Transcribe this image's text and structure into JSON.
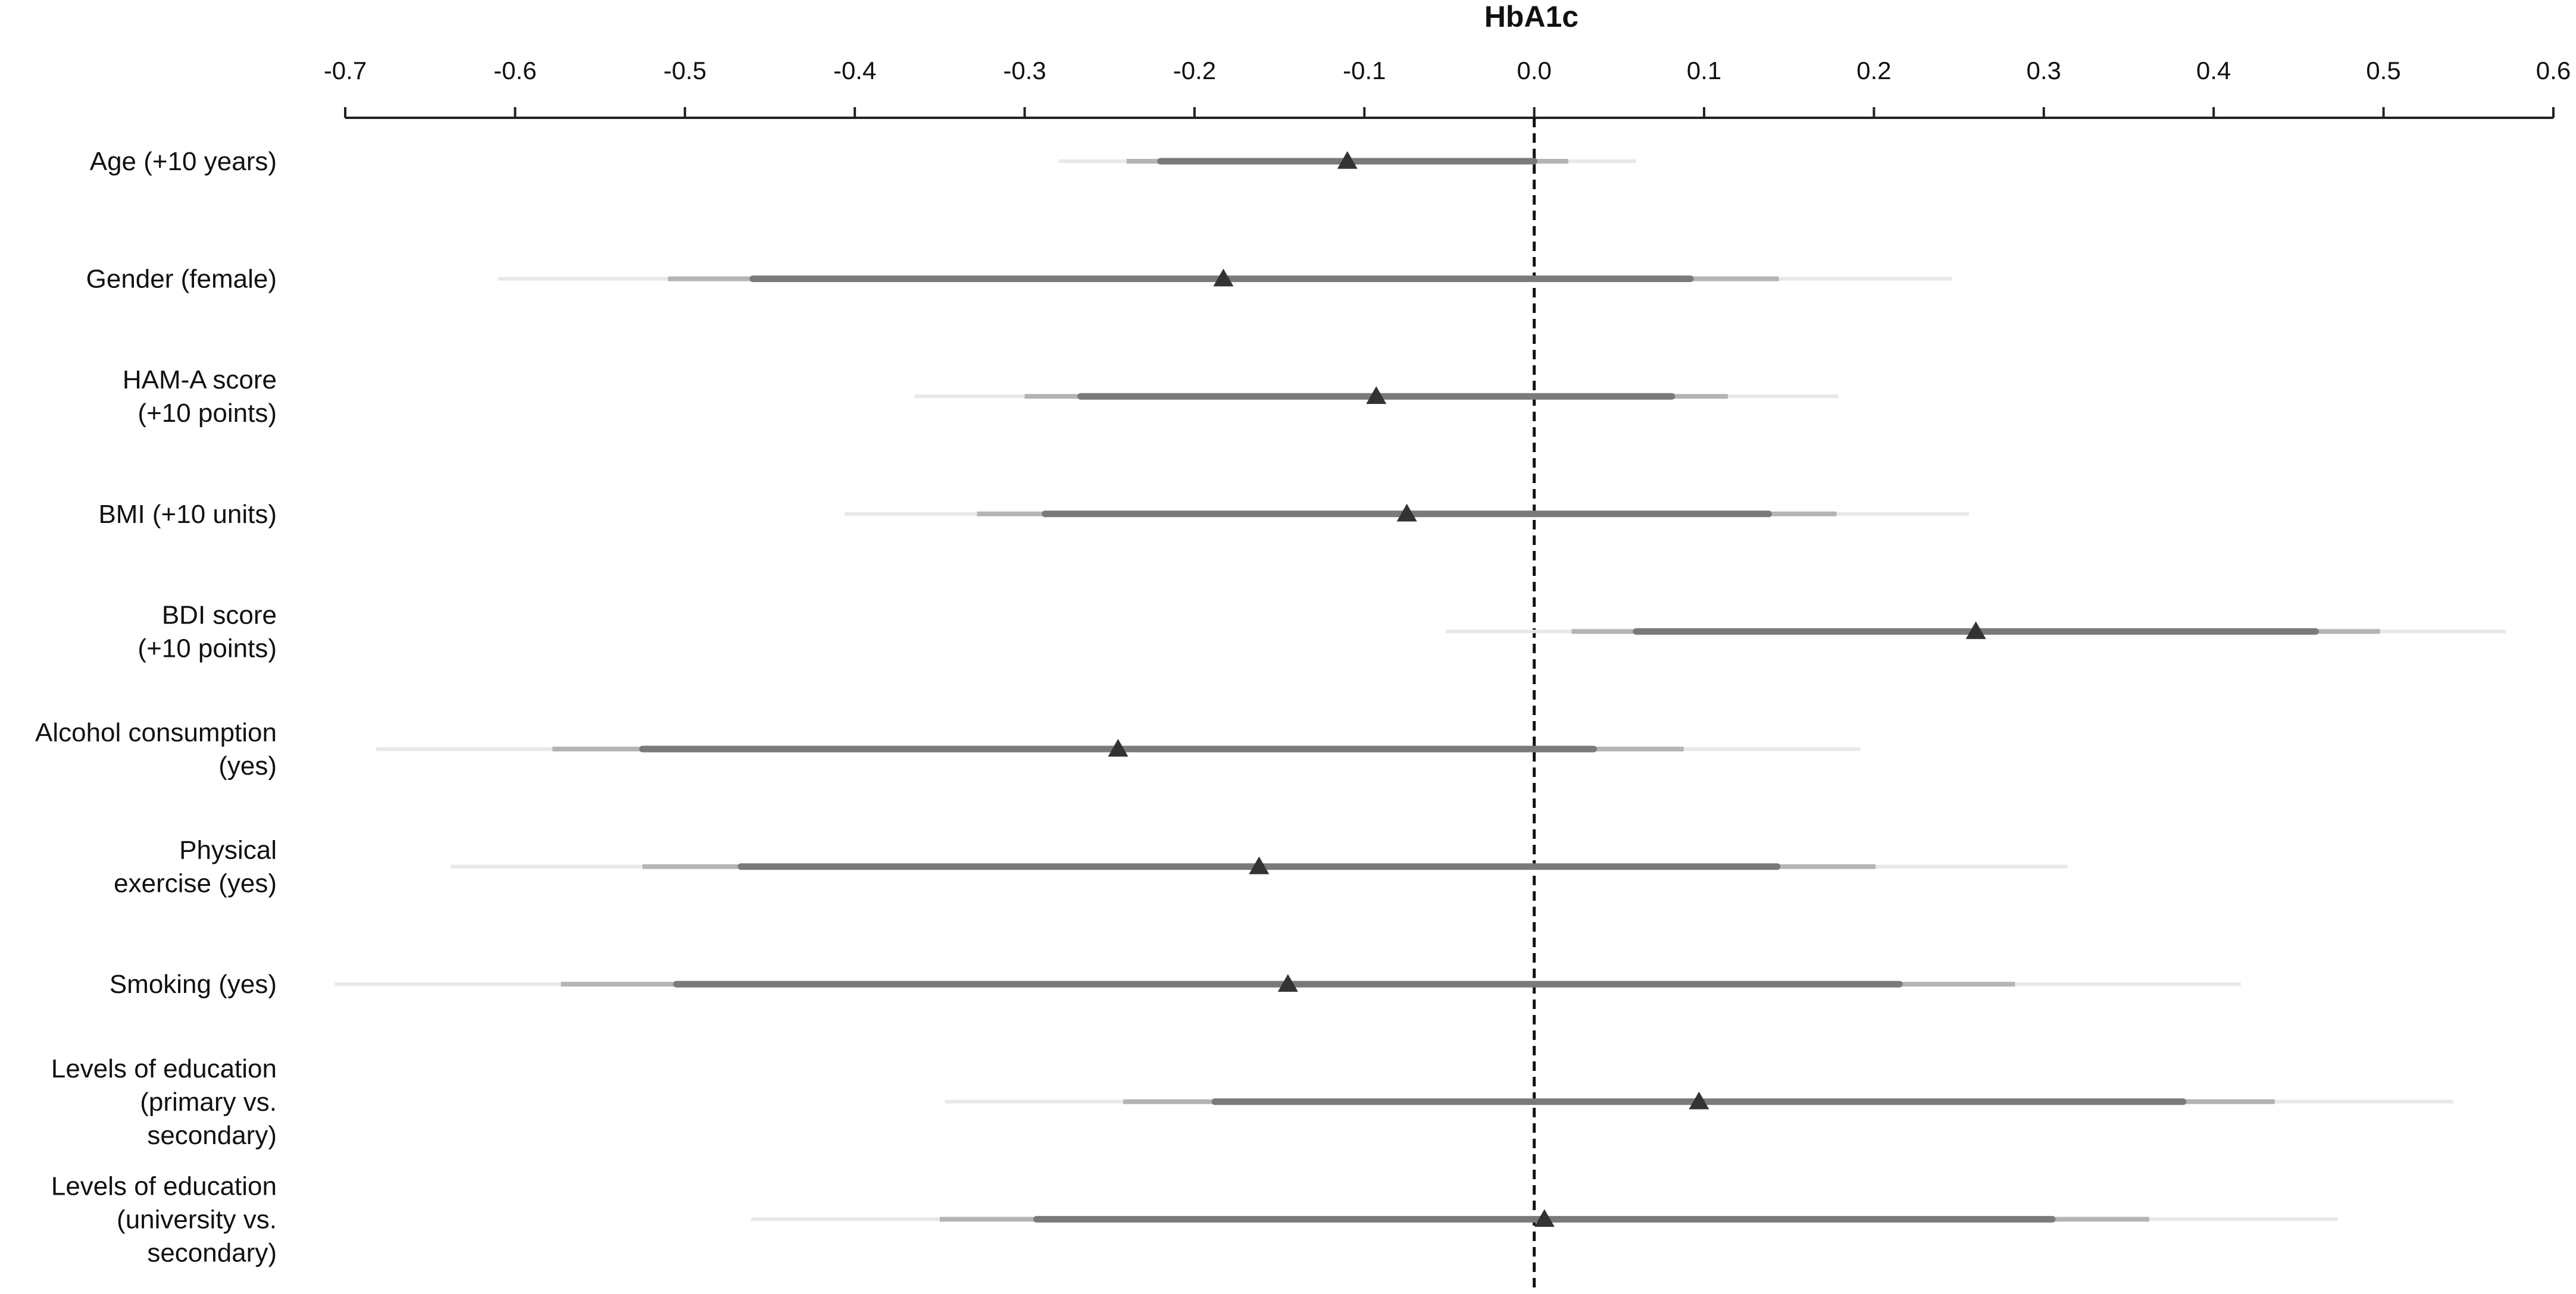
{
  "chart_data": {
    "type": "forest",
    "title": "HbA1c",
    "xlim": [
      -0.7,
      0.6
    ],
    "xticks": [
      "-0.7",
      "-0.6",
      "-0.5",
      "-0.4",
      "-0.3",
      "-0.2",
      "-0.1",
      "0.0",
      "0.1",
      "0.2",
      "0.3",
      "0.4",
      "0.5",
      "0.6"
    ],
    "reference_line": 0.0,
    "rows": [
      {
        "label_lines": [
          "Age (+10 years)"
        ],
        "estimate": -0.11,
        "ci_inner": [
          -0.22,
          0.0
        ],
        "ci_mid": [
          -0.24,
          0.02
        ],
        "ci_outer": [
          -0.28,
          0.06
        ]
      },
      {
        "label_lines": [
          "Gender (female)"
        ],
        "estimate": -0.183,
        "ci_inner": [
          -0.46,
          0.092
        ],
        "ci_mid": [
          -0.51,
          0.144
        ],
        "ci_outer": [
          -0.61,
          0.246
        ]
      },
      {
        "label_lines": [
          "HAM-A score",
          "(+10 points)"
        ],
        "estimate": -0.093,
        "ci_inner": [
          -0.267,
          0.081
        ],
        "ci_mid": [
          -0.3,
          0.114
        ],
        "ci_outer": [
          -0.365,
          0.179
        ]
      },
      {
        "label_lines": [
          "BMI (+10 units)"
        ],
        "estimate": -0.075,
        "ci_inner": [
          -0.288,
          0.138
        ],
        "ci_mid": [
          -0.328,
          0.178
        ],
        "ci_outer": [
          -0.406,
          0.256
        ]
      },
      {
        "label_lines": [
          "BDI score",
          "(+10 points)"
        ],
        "estimate": 0.26,
        "ci_inner": [
          0.06,
          0.46
        ],
        "ci_mid": [
          0.022,
          0.498
        ],
        "ci_outer": [
          -0.052,
          0.572
        ]
      },
      {
        "label_lines": [
          "Alcohol consumption",
          "(yes)"
        ],
        "estimate": -0.245,
        "ci_inner": [
          -0.525,
          0.035
        ],
        "ci_mid": [
          -0.578,
          0.088
        ],
        "ci_outer": [
          -0.682,
          0.192
        ]
      },
      {
        "label_lines": [
          "Physical",
          "exercise (yes)"
        ],
        "estimate": -0.162,
        "ci_inner": [
          -0.467,
          0.143
        ],
        "ci_mid": [
          -0.525,
          0.201
        ],
        "ci_outer": [
          -0.638,
          0.314
        ]
      },
      {
        "label_lines": [
          "Smoking (yes)"
        ],
        "estimate": -0.145,
        "ci_inner": [
          -0.505,
          0.215
        ],
        "ci_mid": [
          -0.573,
          0.283
        ],
        "ci_outer": [
          -0.706,
          0.416
        ]
      },
      {
        "label_lines": [
          "Levels of education",
          "(primary vs.",
          "secondary)"
        ],
        "estimate": 0.097,
        "ci_inner": [
          -0.188,
          0.382
        ],
        "ci_mid": [
          -0.242,
          0.436
        ],
        "ci_outer": [
          -0.347,
          0.541
        ]
      },
      {
        "label_lines": [
          "Levels of education",
          "(university vs.",
          "secondary)"
        ],
        "estimate": 0.006,
        "ci_inner": [
          -0.293,
          0.305
        ],
        "ci_mid": [
          -0.35,
          0.362
        ],
        "ci_outer": [
          -0.461,
          0.473
        ]
      }
    ],
    "colors": {
      "axis": "#222222",
      "ci_inner": "#7a7a7a",
      "ci_mid": "#b4b4b4",
      "ci_outer": "#e8e8e8",
      "marker": "#333333",
      "reference_line": "#111111"
    },
    "grid": false
  }
}
